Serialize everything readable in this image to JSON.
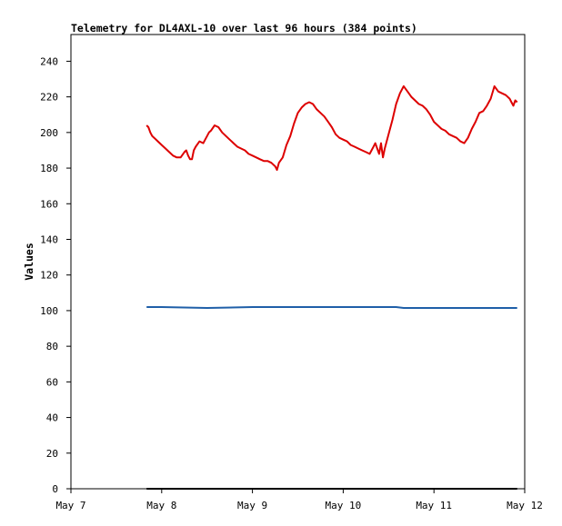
{
  "chart_data": {
    "type": "line",
    "title": "Telemetry for DL4AXL-10 over last 96 hours (384 points)",
    "xlabel": "",
    "ylabel": "Values",
    "ylim": [
      0,
      255
    ],
    "yticks": [
      0,
      20,
      40,
      60,
      80,
      100,
      120,
      140,
      160,
      180,
      200,
      220,
      240
    ],
    "xlim": [
      "2024-05-07 00:00",
      "2024-05-12 00:00"
    ],
    "xticks": [
      "May 7",
      "May 8",
      "May 9",
      "May 10",
      "May 11",
      "May 12"
    ],
    "grid": false,
    "legend": "none",
    "series": [
      {
        "color": "#dd0000",
        "points": [
          [
            "05-07 20:00",
            204
          ],
          [
            "05-07 20:30",
            203
          ],
          [
            "05-07 21:00",
            200
          ],
          [
            "05-07 21:30",
            198
          ],
          [
            "05-07 22:00",
            197
          ],
          [
            "05-07 23:00",
            195
          ],
          [
            "05-08 00:00",
            193
          ],
          [
            "05-08 01:00",
            191
          ],
          [
            "05-08 02:00",
            189
          ],
          [
            "05-08 03:00",
            187
          ],
          [
            "05-08 04:00",
            186
          ],
          [
            "05-08 05:00",
            186
          ],
          [
            "05-08 06:00",
            189
          ],
          [
            "05-08 06:30",
            190
          ],
          [
            "05-08 07:00",
            187
          ],
          [
            "05-08 07:30",
            185
          ],
          [
            "05-08 08:00",
            185
          ],
          [
            "05-08 08:30",
            190
          ],
          [
            "05-08 09:00",
            192
          ],
          [
            "05-08 10:00",
            195
          ],
          [
            "05-08 11:00",
            194
          ],
          [
            "05-08 11:30",
            196
          ],
          [
            "05-08 12:00",
            198
          ],
          [
            "05-08 12:30",
            200
          ],
          [
            "05-08 13:00",
            201
          ],
          [
            "05-08 14:00",
            204
          ],
          [
            "05-08 15:00",
            203
          ],
          [
            "05-08 16:00",
            200
          ],
          [
            "05-08 17:00",
            198
          ],
          [
            "05-08 18:00",
            196
          ],
          [
            "05-08 19:00",
            194
          ],
          [
            "05-08 20:00",
            192
          ],
          [
            "05-08 21:00",
            191
          ],
          [
            "05-08 22:00",
            190
          ],
          [
            "05-08 23:00",
            188
          ],
          [
            "05-09 00:00",
            187
          ],
          [
            "05-09 01:00",
            186
          ],
          [
            "05-09 02:00",
            185
          ],
          [
            "05-09 03:00",
            184
          ],
          [
            "05-09 04:00",
            184
          ],
          [
            "05-09 05:00",
            183
          ],
          [
            "05-09 06:00",
            181
          ],
          [
            "05-09 06:30",
            179
          ],
          [
            "05-09 07:00",
            183
          ],
          [
            "05-09 08:00",
            186
          ],
          [
            "05-09 09:00",
            193
          ],
          [
            "05-09 10:00",
            198
          ],
          [
            "05-09 11:00",
            205
          ],
          [
            "05-09 12:00",
            211
          ],
          [
            "05-09 13:00",
            214
          ],
          [
            "05-09 14:00",
            216
          ],
          [
            "05-09 15:00",
            217
          ],
          [
            "05-09 16:00",
            216
          ],
          [
            "05-09 17:00",
            213
          ],
          [
            "05-09 18:00",
            211
          ],
          [
            "05-09 19:00",
            209
          ],
          [
            "05-09 20:00",
            206
          ],
          [
            "05-09 21:00",
            203
          ],
          [
            "05-09 22:00",
            199
          ],
          [
            "05-09 23:00",
            197
          ],
          [
            "05-10 00:00",
            196
          ],
          [
            "05-10 01:00",
            195
          ],
          [
            "05-10 02:00",
            193
          ],
          [
            "05-10 03:00",
            192
          ],
          [
            "05-10 04:00",
            191
          ],
          [
            "05-10 05:00",
            190
          ],
          [
            "05-10 06:00",
            189
          ],
          [
            "05-10 07:00",
            188
          ],
          [
            "05-10 08:00",
            192
          ],
          [
            "05-10 08:30",
            194
          ],
          [
            "05-10 09:00",
            191
          ],
          [
            "05-10 09:30",
            188
          ],
          [
            "05-10 10:00",
            194
          ],
          [
            "05-10 10:30",
            186
          ],
          [
            "05-10 11:00",
            191
          ],
          [
            "05-10 12:00",
            199
          ],
          [
            "05-10 13:00",
            207
          ],
          [
            "05-10 14:00",
            216
          ],
          [
            "05-10 15:00",
            222
          ],
          [
            "05-10 16:00",
            226
          ],
          [
            "05-10 17:00",
            223
          ],
          [
            "05-10 18:00",
            220
          ],
          [
            "05-10 19:00",
            218
          ],
          [
            "05-10 20:00",
            216
          ],
          [
            "05-10 21:00",
            215
          ],
          [
            "05-10 22:00",
            213
          ],
          [
            "05-10 23:00",
            210
          ],
          [
            "05-11 00:00",
            206
          ],
          [
            "05-11 01:00",
            204
          ],
          [
            "05-11 02:00",
            202
          ],
          [
            "05-11 03:00",
            201
          ],
          [
            "05-11 04:00",
            199
          ],
          [
            "05-11 05:00",
            198
          ],
          [
            "05-11 06:00",
            197
          ],
          [
            "05-11 07:00",
            195
          ],
          [
            "05-11 08:00",
            194
          ],
          [
            "05-11 09:00",
            197
          ],
          [
            "05-11 10:00",
            202
          ],
          [
            "05-11 11:00",
            206
          ],
          [
            "05-11 12:00",
            211
          ],
          [
            "05-11 13:00",
            212
          ],
          [
            "05-11 14:00",
            215
          ],
          [
            "05-11 15:00",
            219
          ],
          [
            "05-11 16:00",
            226
          ],
          [
            "05-11 17:00",
            223
          ],
          [
            "05-11 18:00",
            222
          ],
          [
            "05-11 19:00",
            221
          ],
          [
            "05-11 20:00",
            219
          ],
          [
            "05-11 20:30",
            217
          ],
          [
            "05-11 21:00",
            215
          ],
          [
            "05-11 21:30",
            218
          ],
          [
            "05-11 22:00",
            217
          ]
        ]
      },
      {
        "color": "#1f5fa8",
        "points": [
          [
            "05-07 20:00",
            102
          ],
          [
            "05-08 00:00",
            102
          ],
          [
            "05-08 12:00",
            101.5
          ],
          [
            "05-09 00:00",
            102
          ],
          [
            "05-09 12:00",
            102
          ],
          [
            "05-10 00:00",
            102
          ],
          [
            "05-10 14:00",
            102
          ],
          [
            "05-10 16:00",
            101.5
          ],
          [
            "05-11 00:00",
            101.5
          ],
          [
            "05-11 12:00",
            101.5
          ],
          [
            "05-11 22:00",
            101.5
          ]
        ]
      },
      {
        "color": "#000000",
        "points": [
          [
            "05-07 20:00",
            0
          ],
          [
            "05-11 22:00",
            0
          ]
        ]
      }
    ]
  }
}
